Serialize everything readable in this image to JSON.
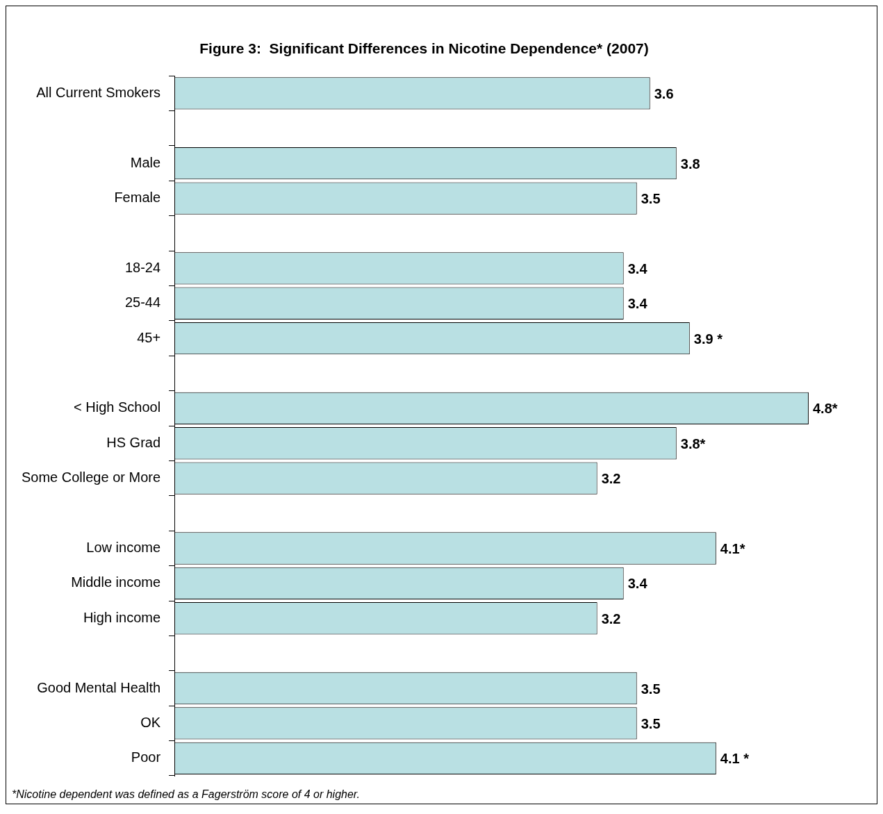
{
  "chart_data": {
    "type": "bar",
    "orientation": "horizontal",
    "title": "Figure 3:  Significant Differences in Nicotine Dependence* (2007)",
    "categories": [
      "All Current Smokers",
      null,
      "Male",
      "Female",
      null,
      "18-24",
      "25-44",
      "45+",
      null,
      "< High School",
      "HS Grad",
      "Some College or More",
      null,
      "Low income",
      "Middle income",
      "High income",
      null,
      "Good Mental Health",
      "OK",
      "Poor"
    ],
    "values": [
      3.6,
      null,
      3.8,
      3.5,
      null,
      3.4,
      3.4,
      3.9,
      null,
      4.8,
      3.8,
      3.2,
      null,
      4.1,
      3.4,
      3.2,
      null,
      3.5,
      3.5,
      4.1
    ],
    "value_labels": [
      "3.6",
      null,
      "3.8",
      "3.5",
      null,
      "3.4",
      "3.4",
      "3.9 *",
      null,
      "4.8*",
      "3.8*",
      "3.2",
      null,
      "4.1*",
      "3.4",
      "3.2",
      null,
      "3.5",
      "3.5",
      "4.1 *"
    ],
    "color": "#b9e0e3",
    "annotations": [
      "*Nicotine dependent was defined as a Fagerström score of 4 or higher."
    ],
    "grid": false,
    "legend": false
  }
}
